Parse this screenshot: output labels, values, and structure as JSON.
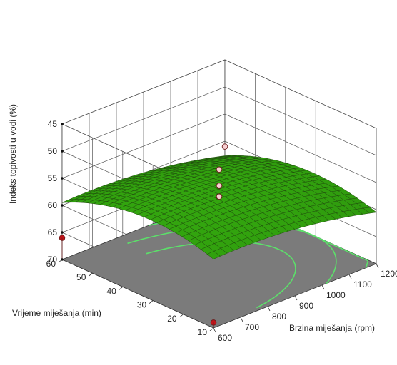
{
  "chart_data": {
    "type": "surface3d",
    "zlabel": "Indeks topivosti u vodi  (%)",
    "xlabel": "Brzina miješanja (rpm)",
    "ylabel": "Vrijeme miješanja (min)",
    "x_ticks": [
      "600",
      "700",
      "800",
      "900",
      "1000",
      "1100",
      "1200"
    ],
    "y_ticks": [
      "10",
      "20",
      "30",
      "40",
      "50",
      "60"
    ],
    "z_ticks": [
      "45",
      "50",
      "55",
      "60",
      "65",
      "70"
    ],
    "xlim": [
      600,
      1200
    ],
    "ylim": [
      10,
      60
    ],
    "zlim": [
      45,
      70
    ],
    "z_axis_inverted": true,
    "surface_color": "#3f9a1a",
    "floor_color": "#7b7b7b",
    "contour_color": "#5ce06a",
    "design_points": [
      {
        "x": 600,
        "y": 60,
        "z": 66,
        "above_surface": false
      },
      {
        "x": 600,
        "y": 10,
        "z": 69,
        "above_surface": false
      },
      {
        "x": 1200,
        "y": 60,
        "z": 61,
        "above_surface": true
      },
      {
        "x": 900,
        "y": 35,
        "z": 53,
        "above_surface": true
      },
      {
        "x": 900,
        "y": 35,
        "z": 56,
        "above_surface": true
      },
      {
        "x": 900,
        "y": 35,
        "z": 58,
        "above_surface": true
      }
    ]
  }
}
